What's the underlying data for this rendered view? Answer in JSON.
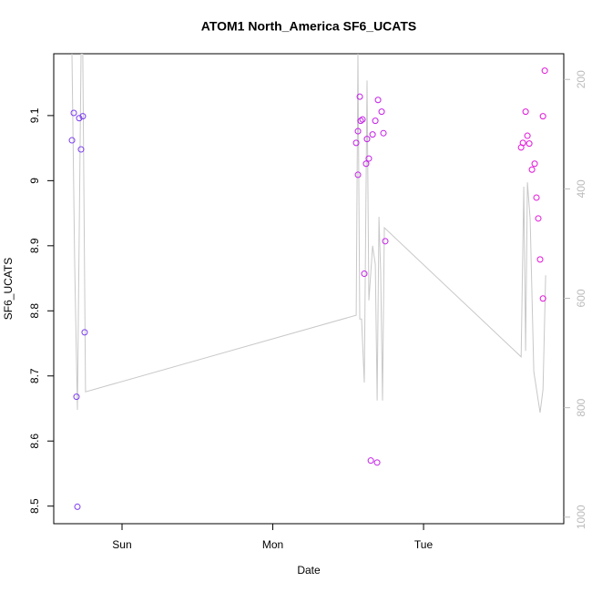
{
  "chart_data": {
    "type": "scatter",
    "title": "ATOM1 North_America SF6_UCATS",
    "xlabel": "Date",
    "ylabel": "SF6_UCATS",
    "xlim": [
      -0.453,
      2.93
    ],
    "xticks": [
      {
        "value": 0,
        "label": "Sun"
      },
      {
        "value": 1,
        "label": "Mon"
      },
      {
        "value": 2,
        "label": "Tue"
      }
    ],
    "ylim": [
      8.473,
      9.195
    ],
    "yticks": [
      8.5,
      8.6,
      8.7,
      8.8,
      8.9,
      9.0,
      9.1
    ],
    "y2lim": [
      1012,
      153
    ],
    "y2ticks": [
      200,
      400,
      600,
      800,
      1000
    ],
    "points": {
      "x": [
        -0.332,
        -0.32,
        -0.302,
        -0.296,
        -0.284,
        -0.272,
        -0.26,
        -0.248,
        1.553,
        1.565,
        1.565,
        1.577,
        1.583,
        1.595,
        1.607,
        1.619,
        1.625,
        1.637,
        1.65,
        1.662,
        1.68,
        1.692,
        1.698,
        1.722,
        1.734,
        1.746,
        2.647,
        2.659,
        2.677,
        2.689,
        2.701,
        2.719,
        2.737,
        2.749,
        2.761,
        2.773,
        2.792,
        2.792,
        2.804
      ],
      "values": [
        9.062,
        9.104,
        8.668,
        8.499,
        9.096,
        9.048,
        9.099,
        8.767,
        9.058,
        9.009,
        9.076,
        9.129,
        9.092,
        9.094,
        8.857,
        9.026,
        9.064,
        9.034,
        8.57,
        9.071,
        9.092,
        8.567,
        9.124,
        9.106,
        9.073,
        8.907,
        9.051,
        9.058,
        9.106,
        9.069,
        9.057,
        9.017,
        9.026,
        8.974,
        8.942,
        8.879,
        9.099,
        8.819,
        9.169
      ],
      "colors": [
        "#7b3cf0",
        "#7b3cf0",
        "#7b3cf0",
        "#7b3cf0",
        "#7b3cf0",
        "#7b3cf0",
        "#7b3cf0",
        "#7b3cf0",
        "#c41ee8",
        "#c41ee8",
        "#c41ee8",
        "#c41ee8",
        "#c41ee8",
        "#c41ee8",
        "#c41ee8",
        "#c41ee8",
        "#c41ee8",
        "#c41ee8",
        "#c41ee8",
        "#c41ee8",
        "#c41ee8",
        "#c41ee8",
        "#c41ee8",
        "#c41ee8",
        "#c41ee8",
        "#c41ee8",
        "#e214d8",
        "#e214d8",
        "#e214d8",
        "#e214d8",
        "#e214d8",
        "#e214d8",
        "#e214d8",
        "#e214d8",
        "#e214d8",
        "#e214d8",
        "#e214d8",
        "#e214d8",
        "#e214d8"
      ]
    },
    "line": {
      "axis": "y2",
      "color": "#c8c8c8",
      "x": [
        -0.332,
        -0.314,
        -0.296,
        -0.272,
        -0.26,
        -0.242,
        1.553,
        1.565,
        1.577,
        1.589,
        1.607,
        1.625,
        1.637,
        1.65,
        1.662,
        1.68,
        1.692,
        1.704,
        1.716,
        1.728,
        1.74,
        2.647,
        2.665,
        2.677,
        2.689,
        2.707,
        2.731,
        2.773,
        2.792,
        2.81
      ],
      "values": [
        153,
        538,
        804,
        153,
        153,
        771,
        631,
        153,
        638,
        638,
        754,
        202,
        604,
        554,
        504,
        538,
        787,
        451,
        554,
        787,
        471,
        707,
        396,
        696,
        388,
        455,
        734,
        809,
        767,
        558
      ]
    }
  }
}
